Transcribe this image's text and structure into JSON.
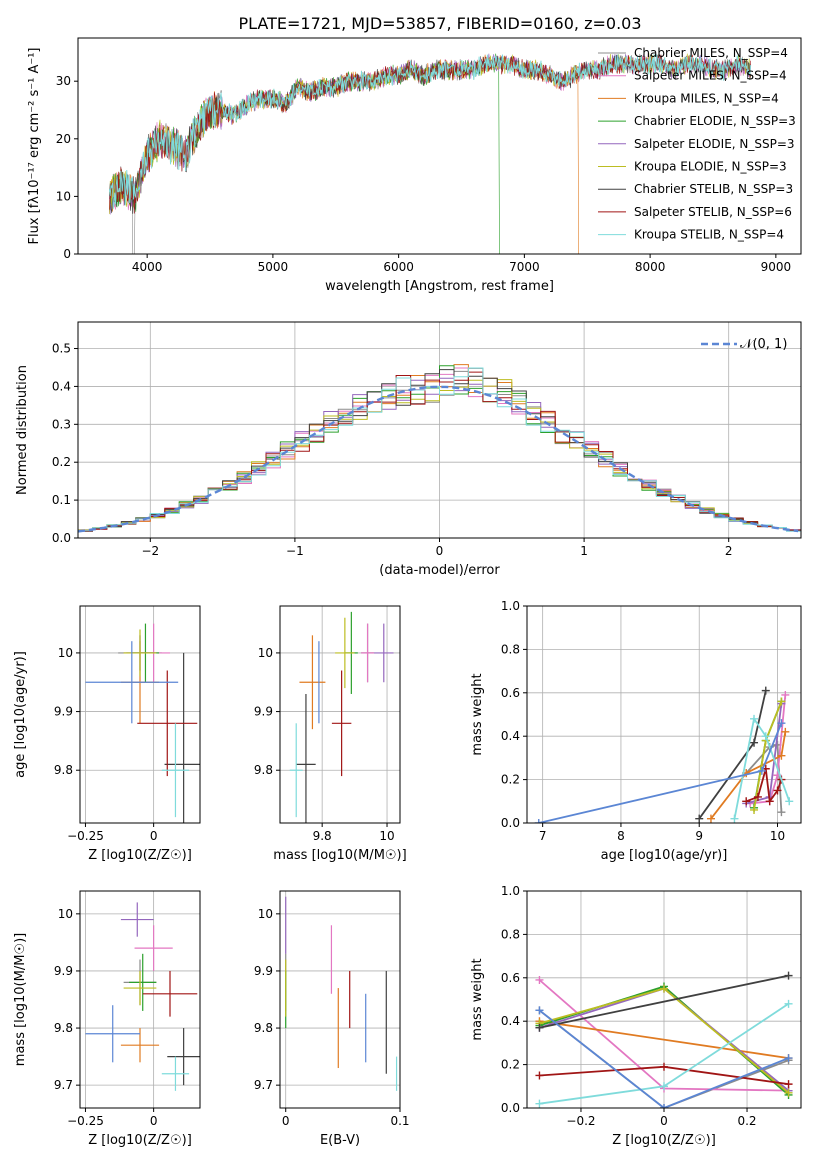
{
  "title": "PLATE=1721, MJD=53857, FIBERID=0160, z=0.03",
  "colors": [
    "#8c8c8c",
    "#e377c2",
    "#e07b22",
    "#2ca02c",
    "#9467bd",
    "#bcbd22",
    "#404040",
    "#a01515",
    "#7fdbdb",
    "#5b86d4"
  ],
  "chart_data": [
    {
      "type": "line",
      "xlabel": "wavelength [Angstrom, rest frame]",
      "ylabel": "Flux [fλ10⁻¹⁷ erg cm⁻² s⁻¹ A⁻¹]",
      "xlim": [
        3450,
        9200
      ],
      "ylim": [
        0,
        37.5
      ],
      "xticks": [
        4000,
        5000,
        6000,
        7000,
        8000,
        9000
      ],
      "yticks": [
        0,
        10,
        20,
        30
      ],
      "grid": false,
      "legend_position": "top-right",
      "legend": [
        "Chabrier MILES, N_SSP=4",
        "Salpeter MILES, N_SSP=4",
        "Kroupa MILES, N_SSP=4",
        "Chabrier ELODIE, N_SSP=3",
        "Salpeter ELODIE, N_SSP=3",
        "Kroupa ELODIE, N_SSP=3",
        "Chabrier STELIB, N_SSP=3",
        "Salpeter STELIB, N_SSP=6",
        "Kroupa STELIB, N_SSP=4"
      ],
      "spectrum_x": [
        3700,
        3800,
        3900,
        4000,
        4100,
        4200,
        4300,
        4400,
        4500,
        4600,
        4700,
        4800,
        4900,
        5000,
        5100,
        5200,
        5300,
        5400,
        5500,
        5600,
        5700,
        5800,
        5900,
        6000,
        6100,
        6200,
        6300,
        6400,
        6500,
        6600,
        6700,
        6800,
        6900,
        7000,
        7100,
        7200,
        7300,
        7400,
        7500,
        7600,
        7700,
        7800,
        7900,
        8000,
        8100,
        8200,
        8300,
        8400,
        8500,
        8600,
        8700,
        8800
      ],
      "spectrum_y": [
        10,
        12,
        10,
        17,
        20,
        19,
        17,
        22,
        25,
        25,
        24,
        26,
        27,
        27,
        26,
        29,
        28,
        29,
        29,
        30,
        30,
        30,
        31,
        31,
        32,
        31,
        32,
        32,
        32,
        32,
        33,
        33,
        33,
        32,
        32,
        31,
        30,
        31,
        32,
        32,
        33,
        33,
        33,
        33,
        33,
        32,
        33,
        33,
        32,
        32,
        33,
        32
      ],
      "dropouts": [
        {
          "x": 6800,
          "series": 3
        },
        {
          "x": 7430,
          "series": 2
        }
      ]
    },
    {
      "type": "histogram",
      "xlabel": "(data-model)/error",
      "ylabel": "Normed distribution",
      "xlim": [
        -2.5,
        2.5
      ],
      "ylim": [
        0,
        0.57
      ],
      "xticks": [
        -2,
        -1,
        0,
        1,
        2
      ],
      "yticks": [
        0.0,
        0.1,
        0.2,
        0.3,
        0.4,
        0.5
      ],
      "grid": true,
      "bin_width": 0.1,
      "legend_position": "top-right",
      "reference_curve": "𝒩(0, 1)"
    },
    {
      "type": "scatter",
      "xlabel": "Z [log10(Z/Z☉)]",
      "ylabel": "age  [log10(age/yr)]",
      "xlim": [
        -0.27,
        0.17
      ],
      "ylim": [
        9.71,
        10.08
      ],
      "xticks": [
        -0.25,
        0.0
      ],
      "yticks": [
        9.8,
        9.9,
        10.0
      ],
      "grid": true,
      "points": [
        {
          "x": -0.05,
          "xerr": 0.08,
          "y": 10.0,
          "yerr": 0.03
        },
        {
          "x": 0.0,
          "xerr": 0.06,
          "y": 10.0,
          "yerr": 0.05
        },
        {
          "x": -0.05,
          "xerr": 0.07,
          "y": 9.95,
          "yerr": 0.07
        },
        {
          "x": -0.03,
          "xerr": 0.05,
          "y": 10.0,
          "yerr": 0.05
        },
        {
          "x": -0.05,
          "xerr": 0.05,
          "y": 10.0,
          "yerr": 0.03
        },
        {
          "x": -0.05,
          "xerr": 0.06,
          "y": 10.0,
          "yerr": 0.04
        },
        {
          "x": 0.11,
          "xerr": 0.07,
          "y": 9.81,
          "yerr": 0.19
        },
        {
          "x": 0.05,
          "xerr": 0.11,
          "y": 9.88,
          "yerr": 0.09
        },
        {
          "x": 0.08,
          "xerr": 0.05,
          "y": 9.8,
          "yerr": 0.08
        },
        {
          "x": -0.08,
          "xerr": 0.17,
          "y": 9.95,
          "yerr": 0.07
        }
      ]
    },
    {
      "type": "scatter",
      "xlabel": "mass [log10(M/M☉)]",
      "ylabel": "",
      "xlim": [
        9.67,
        10.04
      ],
      "ylim": [
        9.71,
        10.08
      ],
      "xticks": [
        9.8,
        10.0
      ],
      "yticks": [
        9.8,
        9.9,
        10.0
      ],
      "grid": true,
      "points": [
        {
          "x": 9.94,
          "xerr": 0.02,
          "y": 10.0,
          "yerr": 0.05
        },
        {
          "x": 9.94,
          "xerr": 0.02,
          "y": 10.0,
          "yerr": 0.05
        },
        {
          "x": 9.77,
          "xerr": 0.04,
          "y": 9.95,
          "yerr": 0.08
        },
        {
          "x": 9.89,
          "xerr": 0.02,
          "y": 10.0,
          "yerr": 0.07
        },
        {
          "x": 9.99,
          "xerr": 0.03,
          "y": 10.0,
          "yerr": 0.05
        },
        {
          "x": 9.87,
          "xerr": 0.03,
          "y": 10.0,
          "yerr": 0.06
        },
        {
          "x": 9.75,
          "xerr": 0.03,
          "y": 9.81,
          "yerr": 0.12
        },
        {
          "x": 9.86,
          "xerr": 0.03,
          "y": 9.88,
          "yerr": 0.09
        },
        {
          "x": 9.72,
          "xerr": 0.02,
          "y": 9.8,
          "yerr": 0.08
        },
        {
          "x": 9.79,
          "xerr": 0.0,
          "y": 9.95,
          "yerr": 0.07
        }
      ]
    },
    {
      "type": "line",
      "xlabel": "age  [log10(age/yr)]",
      "ylabel": "mass weight",
      "xlim": [
        6.8,
        10.3
      ],
      "ylim": [
        0.0,
        1.0
      ],
      "xticks": [
        7,
        8,
        9,
        10
      ],
      "yticks": [
        0.0,
        0.2,
        0.4,
        0.6,
        0.8,
        1.0
      ],
      "grid": true,
      "series": [
        {
          "x": [
            9.6,
            9.9,
            10.0,
            10.05
          ],
          "y": [
            0.23,
            0.35,
            0.36,
            0.05
          ]
        },
        {
          "x": [
            9.65,
            9.9,
            10.0,
            10.1
          ],
          "y": [
            0.09,
            0.1,
            0.22,
            0.59
          ]
        },
        {
          "x": [
            9.15,
            9.6,
            10.05,
            10.1
          ],
          "y": [
            0.02,
            0.23,
            0.31,
            0.42
          ]
        },
        {
          "x": [
            9.7,
            9.85,
            10.05
          ],
          "y": [
            0.07,
            0.38,
            0.56
          ]
        },
        {
          "x": [
            9.6,
            9.9,
            10.05
          ],
          "y": [
            0.09,
            0.12,
            0.55
          ]
        },
        {
          "x": [
            9.7,
            9.85,
            10.05
          ],
          "y": [
            0.06,
            0.38,
            0.56
          ]
        },
        {
          "x": [
            9.0,
            9.7,
            9.85
          ],
          "y": [
            0.02,
            0.37,
            0.61
          ]
        },
        {
          "x": [
            9.6,
            9.75,
            9.85,
            9.9,
            10.0,
            10.05
          ],
          "y": [
            0.1,
            0.12,
            0.25,
            0.1,
            0.15,
            0.2
          ]
        },
        {
          "x": [
            9.45,
            9.7,
            9.85,
            10.15
          ],
          "y": [
            0.02,
            0.48,
            0.4,
            0.1
          ]
        },
        {
          "x": [
            6.95,
            9.8,
            10.05
          ],
          "y": [
            0.0,
            0.24,
            0.46
          ]
        }
      ]
    },
    {
      "type": "scatter",
      "xlabel": "Z [log10(Z/Z☉)]",
      "ylabel": "mass [log10(M/M☉)]",
      "xlim": [
        -0.27,
        0.17
      ],
      "ylim": [
        9.66,
        10.04
      ],
      "xticks": [
        -0.25,
        0.0
      ],
      "yticks": [
        9.7,
        9.8,
        9.9,
        10.0
      ],
      "grid": true,
      "points": [
        {
          "x": -0.05,
          "xerr": 0.06,
          "y": 9.88,
          "yerr": 0.04
        },
        {
          "x": 0.0,
          "xerr": 0.07,
          "y": 9.94,
          "yerr": 0.04
        },
        {
          "x": -0.05,
          "xerr": 0.07,
          "y": 9.77,
          "yerr": 0.03
        },
        {
          "x": -0.04,
          "xerr": 0.05,
          "y": 9.88,
          "yerr": 0.05
        },
        {
          "x": -0.06,
          "xerr": 0.06,
          "y": 9.99,
          "yerr": 0.03
        },
        {
          "x": -0.05,
          "xerr": 0.06,
          "y": 9.87,
          "yerr": 0.03
        },
        {
          "x": 0.11,
          "xerr": 0.06,
          "y": 9.75,
          "yerr": 0.05
        },
        {
          "x": 0.06,
          "xerr": 0.1,
          "y": 9.86,
          "yerr": 0.04
        },
        {
          "x": 0.08,
          "xerr": 0.05,
          "y": 9.72,
          "yerr": 0.03
        },
        {
          "x": -0.15,
          "xerr": 0.1,
          "y": 9.79,
          "yerr": 0.05
        }
      ]
    },
    {
      "type": "scatter",
      "xlabel": "E(B-V)",
      "ylabel": "",
      "xlim": [
        -0.005,
        0.1
      ],
      "ylim": [
        9.66,
        10.04
      ],
      "xticks": [
        0.0,
        0.1
      ],
      "yticks": [
        9.7,
        9.8,
        9.9,
        10.0
      ],
      "grid": true,
      "points": [
        {
          "x": 0.0,
          "y": 9.88,
          "yerr": 0.05
        },
        {
          "x": 0.04,
          "y": 9.92,
          "yerr": 0.06
        },
        {
          "x": 0.046,
          "y": 9.8,
          "yerr": 0.07
        },
        {
          "x": 0.0,
          "y": 9.85,
          "yerr": 0.05
        },
        {
          "x": 0.0,
          "y": 9.98,
          "yerr": 0.05
        },
        {
          "x": 0.0,
          "y": 9.87,
          "yerr": 0.05
        },
        {
          "x": 0.088,
          "y": 9.81,
          "yerr": 0.09
        },
        {
          "x": 0.056,
          "y": 9.85,
          "yerr": 0.05
        },
        {
          "x": 0.097,
          "y": 9.72,
          "yerr": 0.03
        },
        {
          "x": 0.07,
          "y": 9.8,
          "yerr": 0.06
        }
      ]
    },
    {
      "type": "line",
      "xlabel": "Z [log10(Z/Z☉)]",
      "ylabel": "mass weight",
      "xlim": [
        -0.33,
        0.33
      ],
      "ylim": [
        0.0,
        1.0
      ],
      "xticks": [
        -0.2,
        0.0,
        0.2
      ],
      "yticks": [
        0.0,
        0.2,
        0.4,
        0.6,
        0.8,
        1.0
      ],
      "grid": true,
      "series": [
        {
          "x": [
            -0.3,
            0.0,
            0.3
          ],
          "y": [
            0.45,
            0.0,
            0.22
          ]
        },
        {
          "x": [
            -0.3,
            0.0,
            0.3
          ],
          "y": [
            0.59,
            0.09,
            0.08
          ]
        },
        {
          "x": [
            -0.3,
            0.3
          ],
          "y": [
            0.4,
            0.23
          ]
        },
        {
          "x": [
            -0.3,
            0.0,
            0.3
          ],
          "y": [
            0.38,
            0.56,
            0.06
          ]
        },
        {
          "x": [
            -0.3,
            0.0,
            0.3
          ],
          "y": [
            0.37,
            0.55,
            0.08
          ]
        },
        {
          "x": [
            -0.3,
            0.0,
            0.3
          ],
          "y": [
            0.39,
            0.55,
            0.07
          ]
        },
        {
          "x": [
            -0.3,
            0.3
          ],
          "y": [
            0.37,
            0.61
          ]
        },
        {
          "x": [
            -0.3,
            0.0,
            0.3
          ],
          "y": [
            0.15,
            0.19,
            0.11
          ]
        },
        {
          "x": [
            -0.3,
            0.0,
            0.3
          ],
          "y": [
            0.02,
            0.1,
            0.48
          ]
        },
        {
          "x": [
            -0.3,
            0.0,
            0.3
          ],
          "y": [
            0.45,
            0.0,
            0.23
          ]
        }
      ]
    }
  ]
}
